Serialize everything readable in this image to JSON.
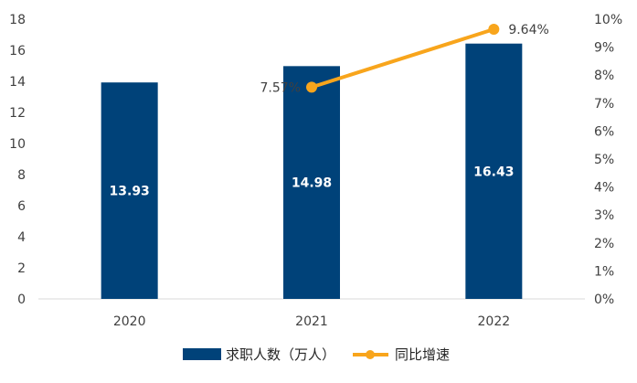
{
  "chart_data": {
    "type": "bar",
    "categories": [
      "2020",
      "2021",
      "2022"
    ],
    "series": [
      {
        "name": "求职人数（万人）",
        "type": "bar",
        "axis": "left",
        "color": "#004279",
        "values": [
          13.93,
          14.98,
          16.43
        ],
        "data_labels": [
          "13.93",
          "14.98",
          "16.43"
        ]
      },
      {
        "name": "同比增速",
        "type": "line",
        "axis": "right",
        "color": "#F8A51C",
        "values": [
          null,
          7.57,
          9.64
        ],
        "data_labels": [
          "",
          "7.57%",
          "9.64%"
        ]
      }
    ],
    "y_left": {
      "ylim": [
        0,
        18
      ],
      "ticks": [
        "0",
        "2",
        "4",
        "6",
        "8",
        "10",
        "12",
        "14",
        "16",
        "18"
      ]
    },
    "y_right": {
      "ylim": [
        0,
        10
      ],
      "ticks": [
        "0%",
        "1%",
        "2%",
        "3%",
        "4%",
        "5%",
        "6%",
        "7%",
        "8%",
        "9%",
        "10%"
      ]
    },
    "grid": false,
    "legend": "bottom"
  }
}
